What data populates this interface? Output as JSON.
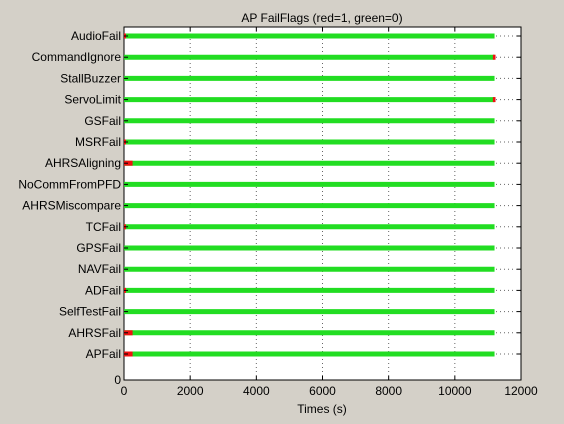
{
  "chart_data": {
    "type": "scatter",
    "title": "AP FailFlags (red=1, green=0)",
    "xlabel": "Times (s)",
    "ylabel": "",
    "xlim": [
      0,
      12000
    ],
    "x_ticks": [
      0,
      2000,
      4000,
      6000,
      8000,
      10000,
      12000
    ],
    "y_zero_label": "0",
    "grid": true,
    "legend": "none",
    "colors": {
      "green": "#22dd22",
      "red": "#ee1111"
    },
    "data_end": 11200,
    "flags": [
      {
        "label": "AudioFail",
        "red": [
          [
            0,
            30
          ]
        ]
      },
      {
        "label": "CommandIgnore",
        "red": [
          [
            11150,
            11230
          ]
        ]
      },
      {
        "label": "StallBuzzer",
        "red": []
      },
      {
        "label": "ServoLimit",
        "red": [
          [
            11150,
            11230
          ]
        ]
      },
      {
        "label": "GSFail",
        "red": []
      },
      {
        "label": "MSRFail",
        "red": [
          [
            0,
            30
          ]
        ]
      },
      {
        "label": "AHRSAligning",
        "red": [
          [
            0,
            260
          ]
        ]
      },
      {
        "label": "NoCommFromPFD",
        "red": []
      },
      {
        "label": "AHRSMiscompare",
        "red": []
      },
      {
        "label": "TCFail",
        "red": [
          [
            0,
            30
          ]
        ]
      },
      {
        "label": "GPSFail",
        "red": []
      },
      {
        "label": "NAVFail",
        "red": []
      },
      {
        "label": "ADFail",
        "red": [
          [
            0,
            30
          ]
        ]
      },
      {
        "label": "SelfTestFail",
        "red": []
      },
      {
        "label": "AHRSFail",
        "red": [
          [
            0,
            260
          ]
        ]
      },
      {
        "label": "APFail",
        "red": [
          [
            0,
            260
          ]
        ]
      }
    ]
  }
}
